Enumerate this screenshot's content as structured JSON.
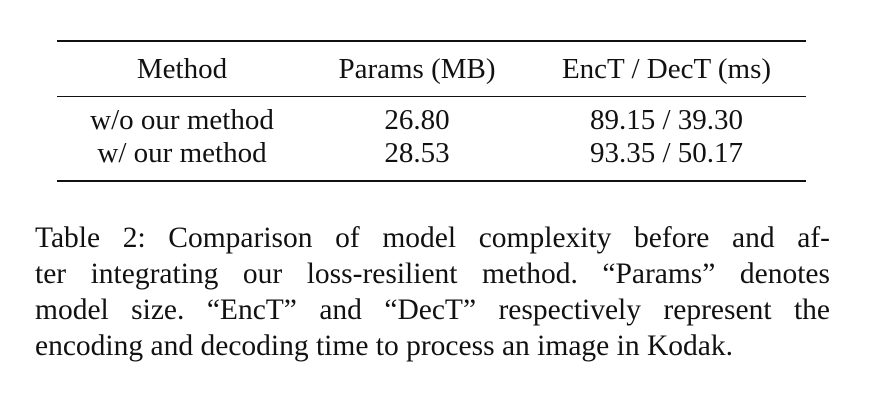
{
  "table": {
    "headers": [
      "Method",
      "Params (MB)",
      "EncT / DecT (ms)"
    ],
    "rows": [
      [
        "w/o our method",
        "26.80",
        "89.15 / 39.30"
      ],
      [
        "w/ our method",
        "28.53",
        "93.35 / 50.17"
      ]
    ]
  },
  "caption": {
    "lines": [
      "Table 2: Comparison of model complexity before and af-",
      "ter integrating our loss-resilient method. “Params” denotes",
      "model size. “EncT” and “DecT” respectively represent the",
      "encoding and decoding time to process an image in Kodak."
    ]
  }
}
